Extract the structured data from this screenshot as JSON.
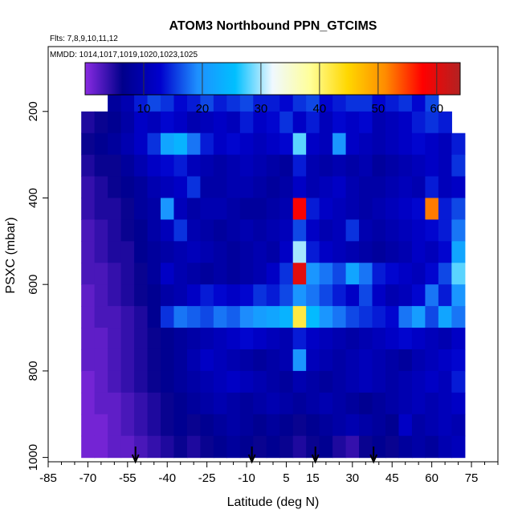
{
  "chart_data": {
    "type": "heatmap",
    "title": "ATOM3 Northbound PPN_GTCIMS",
    "flights_note": "Flts: 7,8,9,10,11,12",
    "dates_note": "MMDD: 1014,1017,1019,1020,1023,1025",
    "xlabel": "Latitude (deg N)",
    "ylabel": "PSXC (mbar)",
    "xlim": [
      -85,
      85
    ],
    "ylim": [
      1010,
      50
    ],
    "x_ticks": [
      -85,
      -70,
      -55,
      -40,
      -25,
      -10,
      5,
      15,
      30,
      45,
      60,
      75
    ],
    "y_ticks": [
      200,
      400,
      600,
      800,
      1000
    ],
    "colorbar": {
      "range": [
        0,
        64
      ],
      "ticks": [
        10,
        20,
        30,
        40,
        50,
        60
      ],
      "colors": [
        "#8a2be2",
        "#00008b",
        "#0000cd",
        "#1e90ff",
        "#00bfff",
        "#f0f8ff",
        "#ffff99",
        "#ffd700",
        "#ff8c00",
        "#ff0000",
        "#b22222"
      ]
    },
    "bins": {
      "lat_start": -75,
      "lat_step": 5,
      "pressure_levels": [
        175,
        225,
        275,
        325,
        375,
        425,
        475,
        525,
        575,
        625,
        675,
        725,
        775,
        825,
        875,
        925,
        975
      ],
      "values": [
        [
          null,
          null,
          null,
          8,
          10,
          14,
          16,
          15,
          13,
          14,
          16,
          14,
          15,
          16,
          14,
          14,
          13,
          15,
          16,
          13,
          14,
          15,
          15,
          13,
          14,
          15,
          13,
          16,
          null,
          null,
          null
        ],
        [
          null,
          5,
          6,
          7,
          9,
          12,
          11,
          13,
          12,
          10,
          11,
          12,
          11,
          14,
          12,
          13,
          15,
          12,
          14,
          11,
          13,
          12,
          13,
          10,
          11,
          12,
          14,
          15,
          14,
          null,
          null
        ],
        [
          null,
          6,
          7,
          8,
          10,
          12,
          15,
          22,
          24,
          18,
          14,
          12,
          13,
          12,
          11,
          12,
          13,
          28,
          12,
          11,
          20,
          12,
          11,
          10,
          11,
          12,
          13,
          12,
          11,
          14,
          null
        ],
        [
          null,
          5,
          6,
          6,
          8,
          10,
          12,
          13,
          14,
          11,
          10,
          9,
          10,
          11,
          10,
          9,
          8,
          14,
          10,
          9,
          10,
          9,
          10,
          8,
          9,
          10,
          11,
          12,
          11,
          15,
          null
        ],
        [
          null,
          4,
          5,
          6,
          7,
          8,
          10,
          11,
          12,
          15,
          9,
          9,
          10,
          10,
          9,
          8,
          9,
          12,
          10,
          11,
          12,
          10,
          9,
          9,
          10,
          11,
          10,
          14,
          11,
          12,
          null
        ],
        [
          null,
          4,
          5,
          5,
          6,
          8,
          9,
          20,
          11,
          9,
          10,
          10,
          9,
          8,
          8,
          9,
          10,
          58,
          14,
          12,
          11,
          10,
          9,
          10,
          11,
          12,
          13,
          52,
          14,
          16,
          null
        ],
        [
          null,
          3,
          4,
          5,
          6,
          7,
          9,
          11,
          15,
          10,
          9,
          8,
          9,
          10,
          9,
          10,
          11,
          16,
          12,
          10,
          11,
          15,
          10,
          9,
          10,
          11,
          12,
          13,
          14,
          18,
          null
        ],
        [
          null,
          3,
          4,
          5,
          5,
          7,
          8,
          9,
          10,
          11,
          10,
          9,
          8,
          9,
          10,
          9,
          12,
          30,
          14,
          12,
          11,
          10,
          9,
          8,
          9,
          10,
          12,
          11,
          13,
          22,
          null
        ],
        [
          null,
          3,
          3,
          4,
          5,
          6,
          8,
          12,
          10,
          9,
          8,
          9,
          8,
          9,
          10,
          12,
          15,
          60,
          20,
          18,
          16,
          22,
          18,
          14,
          13,
          12,
          11,
          13,
          16,
          28,
          null
        ],
        [
          null,
          2,
          3,
          4,
          5,
          6,
          7,
          9,
          10,
          12,
          14,
          13,
          12,
          13,
          15,
          14,
          16,
          20,
          18,
          16,
          14,
          12,
          16,
          12,
          10,
          11,
          13,
          18,
          14,
          20,
          null
        ],
        [
          null,
          2,
          3,
          3,
          4,
          5,
          7,
          15,
          18,
          17,
          16,
          18,
          17,
          19,
          21,
          22,
          24,
          42,
          25,
          20,
          18,
          16,
          15,
          14,
          13,
          18,
          21,
          16,
          22,
          18,
          null
        ],
        [
          null,
          2,
          2,
          3,
          4,
          5,
          6,
          7,
          8,
          9,
          10,
          11,
          12,
          13,
          12,
          11,
          10,
          14,
          12,
          11,
          10,
          9,
          10,
          11,
          12,
          13,
          12,
          11,
          10,
          12,
          null
        ],
        [
          null,
          2,
          2,
          3,
          4,
          5,
          6,
          7,
          8,
          10,
          12,
          11,
          10,
          9,
          8,
          9,
          10,
          20,
          11,
          10,
          9,
          10,
          11,
          10,
          9,
          8,
          10,
          11,
          12,
          13,
          null
        ],
        [
          null,
          1,
          2,
          3,
          4,
          5,
          6,
          7,
          8,
          9,
          10,
          11,
          12,
          11,
          10,
          9,
          8,
          10,
          9,
          8,
          9,
          10,
          11,
          10,
          9,
          10,
          11,
          12,
          11,
          14,
          null
        ],
        [
          null,
          1,
          2,
          2,
          3,
          4,
          5,
          6,
          7,
          8,
          9,
          10,
          9,
          8,
          9,
          10,
          9,
          8,
          9,
          10,
          9,
          8,
          7,
          8,
          9,
          10,
          11,
          10,
          11,
          12,
          null
        ],
        [
          null,
          1,
          1,
          2,
          3,
          4,
          5,
          6,
          7,
          6,
          7,
          8,
          9,
          8,
          7,
          8,
          7,
          6,
          7,
          8,
          9,
          10,
          9,
          8,
          7,
          12,
          9,
          10,
          11,
          10,
          null
        ],
        [
          null,
          1,
          1,
          2,
          2,
          3,
          4,
          5,
          6,
          5,
          6,
          7,
          8,
          7,
          6,
          7,
          6,
          5,
          6,
          7,
          5,
          4,
          6,
          7,
          6,
          8,
          9,
          8,
          10,
          11,
          null
        ]
      ]
    },
    "arrows_at_latitude": [
      -52,
      -8,
      16,
      38
    ]
  }
}
